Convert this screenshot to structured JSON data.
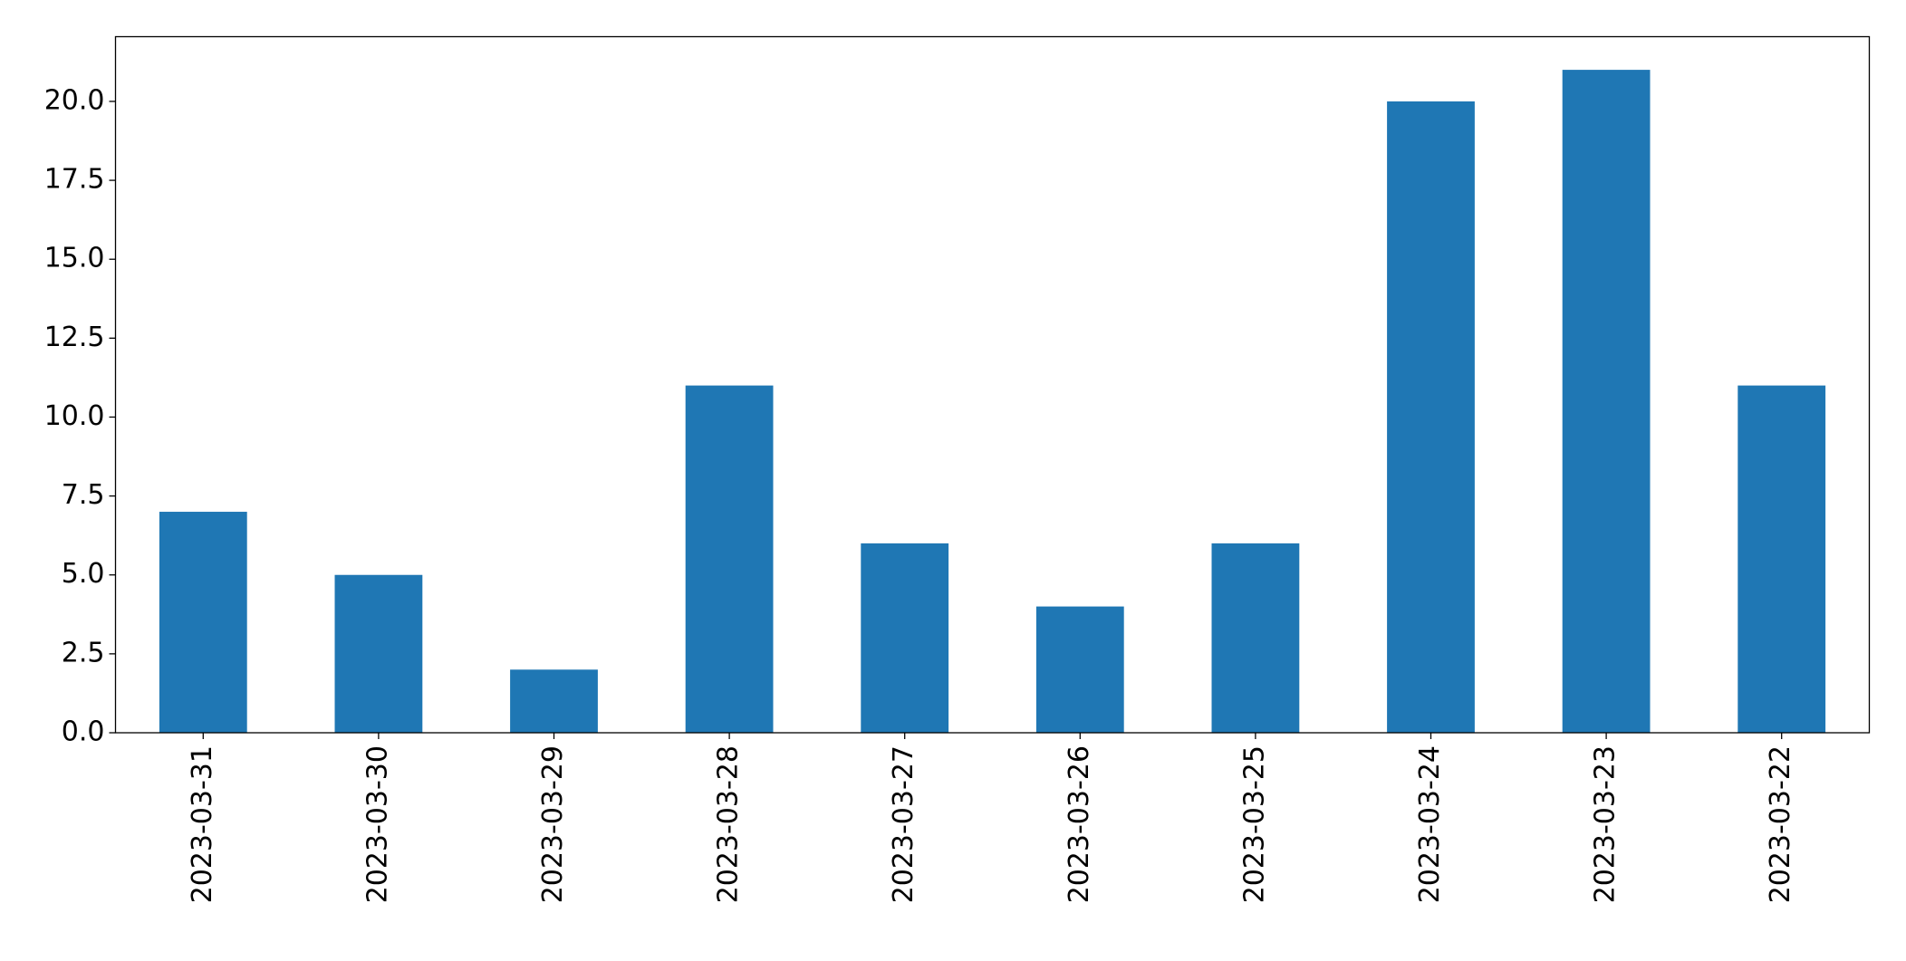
{
  "chart_data": {
    "type": "bar",
    "categories": [
      "2023-03-31",
      "2023-03-30",
      "2023-03-29",
      "2023-03-28",
      "2023-03-27",
      "2023-03-26",
      "2023-03-25",
      "2023-03-24",
      "2023-03-23",
      "2023-03-22"
    ],
    "values": [
      7,
      5,
      2,
      11,
      6,
      4,
      6,
      20,
      21,
      11
    ],
    "color": "#1f77b4",
    "ylim": [
      0,
      22.05
    ],
    "yticks": [
      {
        "value": 0,
        "label": "0.0"
      },
      2.5,
      {
        "value": 5,
        "label": "5.0"
      },
      7.5,
      {
        "value": 10,
        "label": "10.0"
      },
      12.5,
      {
        "value": 15,
        "label": "15.0"
      },
      17.5,
      {
        "value": 20,
        "label": "20.0"
      }
    ],
    "grid": false
  }
}
